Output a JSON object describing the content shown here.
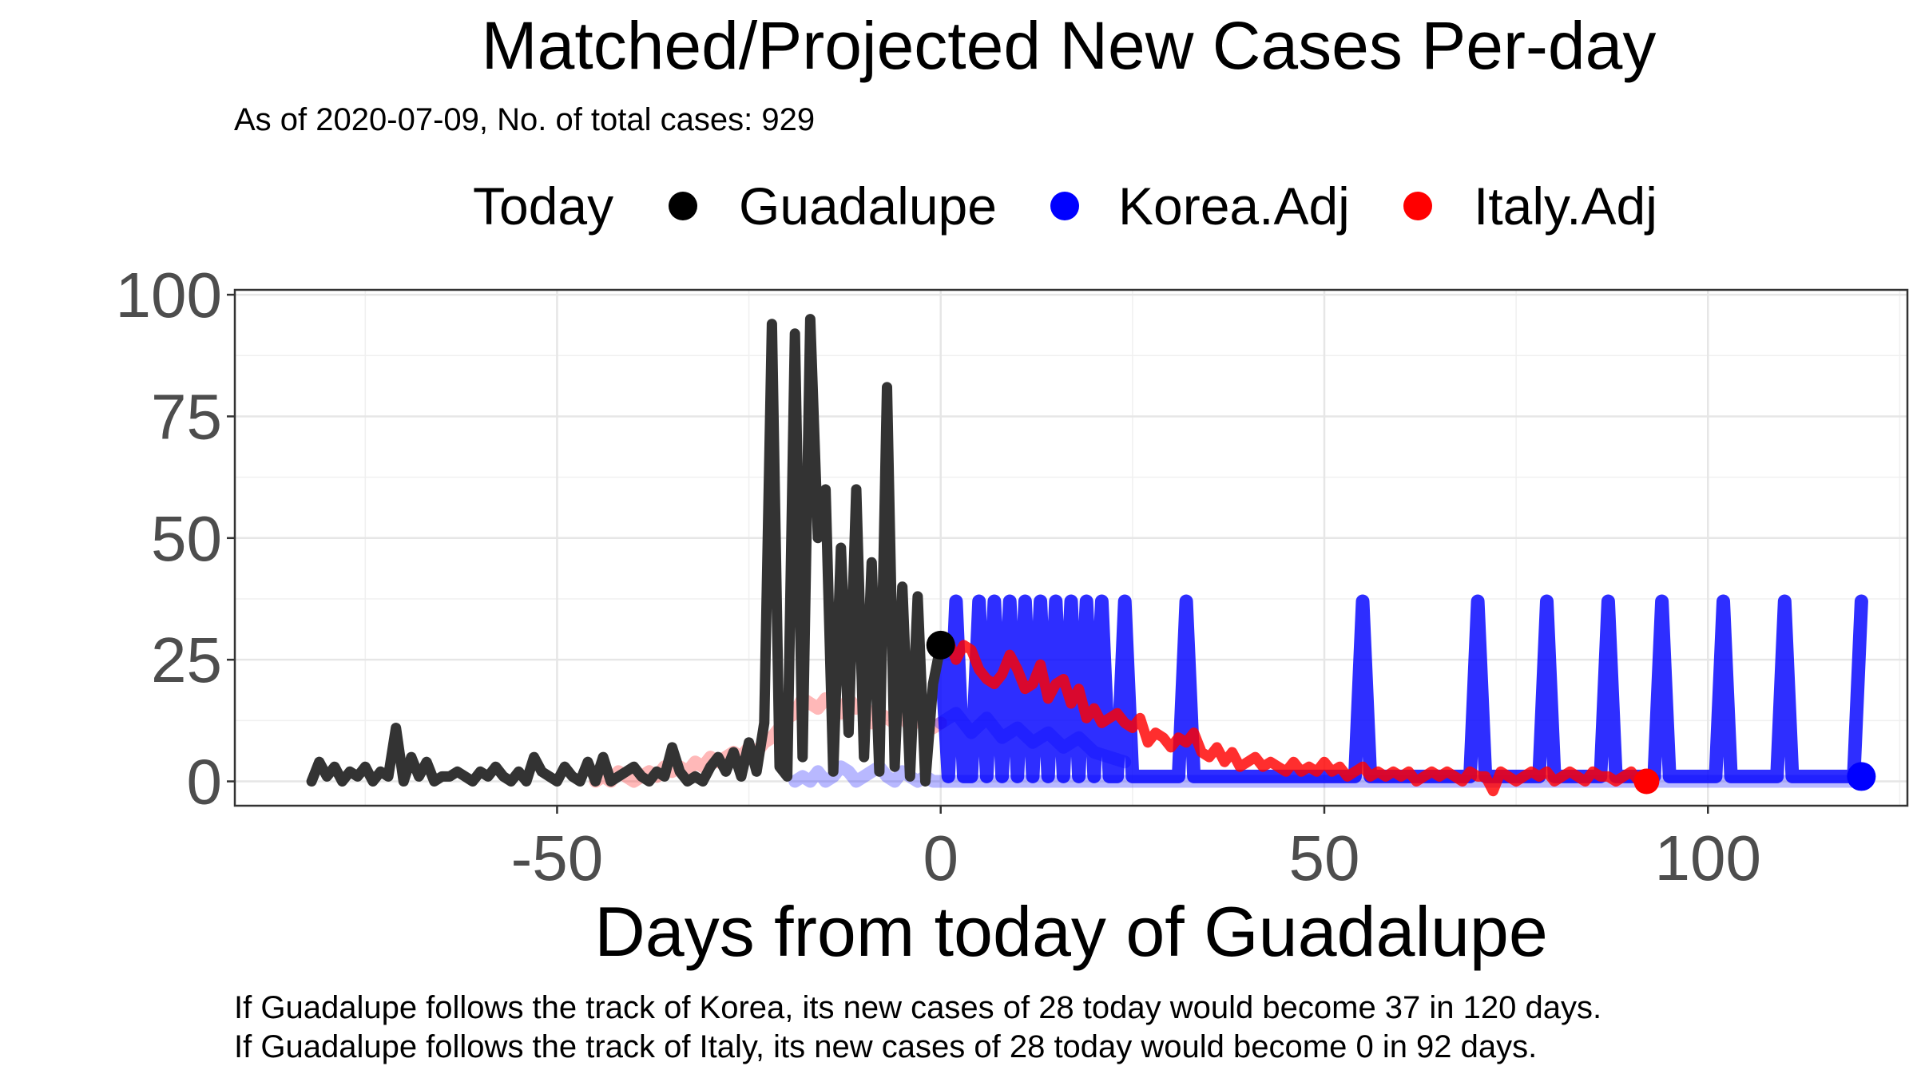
{
  "chart_data": {
    "type": "line",
    "title": "Matched/Projected New Cases Per-day",
    "subtitle": "As of 2020-07-09, No. of total cases: 929",
    "xlabel": "Days from today of Guadalupe",
    "ylabel": "",
    "xlim": [
      -92,
      126
    ],
    "ylim": [
      -5,
      101
    ],
    "x_ticks": [
      -50,
      0,
      50,
      100
    ],
    "y_ticks": [
      0,
      25,
      50,
      75,
      100
    ],
    "grid": true,
    "legend": {
      "position": "top",
      "title": "Today",
      "entries": [
        {
          "label": "Guadalupe",
          "color": "#000000"
        },
        {
          "label": "Korea.Adj",
          "color": "#0000FF"
        },
        {
          "label": "Italy.Adj",
          "color": "#FF0000"
        }
      ]
    },
    "today_point": {
      "x": 0,
      "y": 28
    },
    "series": [
      {
        "name": "Guadalupe",
        "color": "#333333",
        "x": [
          -82,
          -81,
          -80,
          -79,
          -78,
          -77,
          -76,
          -75,
          -74,
          -73,
          -72,
          -71,
          -70,
          -69,
          -68,
          -67,
          -66,
          -65,
          -64,
          -63,
          -62,
          -61,
          -60,
          -59,
          -58,
          -57,
          -56,
          -55,
          -54,
          -53,
          -52,
          -51,
          -50,
          -49,
          -48,
          -47,
          -46,
          -45,
          -44,
          -43,
          -42,
          -41,
          -40,
          -39,
          -38,
          -37,
          -36,
          -35,
          -34,
          -33,
          -32,
          -31,
          -30,
          -29,
          -28,
          -27,
          -26,
          -25,
          -24,
          -23,
          -22,
          -21,
          -20,
          -19,
          -18,
          -17,
          -16,
          -15,
          -14,
          -13,
          -12,
          -11,
          -10,
          -9,
          -8,
          -7,
          -6,
          -5,
          -4,
          -3,
          -2,
          -1,
          0
        ],
        "values": [
          0,
          4,
          1,
          3,
          0,
          2,
          1,
          3,
          0,
          2,
          1,
          11,
          0,
          5,
          1,
          4,
          0,
          1,
          1,
          2,
          1,
          0,
          2,
          1,
          3,
          1,
          0,
          2,
          0,
          5,
          2,
          1,
          0,
          3,
          1,
          0,
          4,
          0,
          5,
          0,
          1,
          2,
          3,
          1,
          0,
          2,
          1,
          7,
          2,
          0,
          1,
          0,
          3,
          5,
          2,
          6,
          1,
          8,
          2,
          12,
          94,
          3,
          1,
          92,
          5,
          95,
          50,
          60,
          2,
          48,
          10,
          60,
          5,
          45,
          2,
          81,
          3,
          40,
          1,
          38,
          0,
          20,
          28
        ]
      },
      {
        "name": "Korea.Adj",
        "color": "#0000FF",
        "x": [
          0,
          1,
          2,
          3,
          4,
          5,
          6,
          7,
          8,
          9,
          10,
          11,
          12,
          13,
          14,
          15,
          16,
          17,
          18,
          19,
          20,
          21,
          22,
          23,
          24,
          25,
          26,
          27,
          28,
          29,
          30,
          31,
          32,
          33,
          34,
          35,
          36,
          37,
          38,
          39,
          40,
          41,
          42,
          43,
          44,
          45,
          46,
          47,
          48,
          49,
          50,
          51,
          52,
          53,
          54,
          55,
          56,
          57,
          58,
          59,
          60,
          61,
          62,
          63,
          64,
          65,
          66,
          67,
          68,
          69,
          70,
          71,
          72,
          73,
          74,
          75,
          76,
          77,
          78,
          79,
          80,
          81,
          82,
          83,
          84,
          85,
          86,
          87,
          88,
          89,
          90,
          91,
          92,
          93,
          94,
          95,
          96,
          97,
          98,
          99,
          100,
          101,
          102,
          103,
          104,
          105,
          106,
          107,
          108,
          109,
          110,
          111,
          112,
          113,
          114,
          115,
          116,
          117,
          118,
          119,
          120
        ],
        "values": [
          28,
          1,
          37,
          1,
          1,
          37,
          1,
          37,
          1,
          37,
          1,
          37,
          1,
          37,
          1,
          37,
          1,
          37,
          1,
          37,
          1,
          37,
          1,
          1,
          37,
          1,
          1,
          1,
          1,
          1,
          1,
          1,
          37,
          1,
          1,
          1,
          1,
          1,
          1,
          1,
          1,
          1,
          1,
          1,
          1,
          1,
          1,
          1,
          1,
          1,
          1,
          1,
          1,
          1,
          1,
          37,
          1,
          1,
          1,
          1,
          1,
          1,
          1,
          1,
          1,
          1,
          1,
          1,
          1,
          1,
          37,
          1,
          1,
          1,
          1,
          1,
          1,
          1,
          1,
          37,
          1,
          1,
          1,
          1,
          1,
          1,
          1,
          37,
          1,
          1,
          1,
          1,
          1,
          1,
          37,
          1,
          1,
          1,
          1,
          1,
          1,
          1,
          37,
          1,
          1,
          1,
          1,
          1,
          1,
          1,
          37,
          1,
          1,
          1,
          1,
          1,
          1,
          1,
          1,
          1,
          37
        ]
      },
      {
        "name": "Italy.Adj",
        "color": "#FF0000",
        "x": [
          0,
          1,
          2,
          3,
          4,
          5,
          6,
          7,
          8,
          9,
          10,
          11,
          12,
          13,
          14,
          15,
          16,
          17,
          18,
          19,
          20,
          21,
          22,
          23,
          24,
          25,
          26,
          27,
          28,
          29,
          30,
          31,
          32,
          33,
          34,
          35,
          36,
          37,
          38,
          39,
          40,
          41,
          42,
          43,
          44,
          45,
          46,
          47,
          48,
          49,
          50,
          51,
          52,
          53,
          54,
          55,
          56,
          57,
          58,
          59,
          60,
          61,
          62,
          63,
          64,
          65,
          66,
          67,
          68,
          69,
          70,
          71,
          72,
          73,
          74,
          75,
          76,
          77,
          78,
          79,
          80,
          81,
          82,
          83,
          84,
          85,
          86,
          87,
          88,
          89,
          90,
          91,
          92
        ],
        "values": [
          28,
          29,
          25,
          28,
          27,
          23,
          21,
          20,
          22,
          26,
          23,
          19,
          20,
          24,
          17,
          20,
          21,
          16,
          19,
          13,
          15,
          12,
          13,
          14,
          12,
          11,
          13,
          8,
          10,
          9,
          7,
          9,
          8,
          10,
          6,
          5,
          7,
          4,
          6,
          3,
          4,
          5,
          3,
          4,
          3,
          2,
          4,
          2,
          3,
          2,
          4,
          2,
          3,
          1,
          2,
          3,
          1,
          2,
          1,
          2,
          1,
          2,
          0,
          1,
          2,
          1,
          2,
          1,
          0,
          2,
          1,
          1,
          -2,
          2,
          1,
          0,
          1,
          2,
          1,
          2,
          0,
          1,
          2,
          1,
          0,
          2,
          1,
          1,
          0,
          1,
          2,
          0,
          0
        ]
      },
      {
        "name": "Korea.Adj matched",
        "color": "#0000FF",
        "faded": true,
        "x": [
          -19,
          -18,
          -17,
          -16,
          -15,
          -14,
          -13,
          -12,
          -11,
          -10,
          -9,
          -8,
          -7,
          -6,
          -5,
          -4,
          -3,
          -2,
          -1,
          0,
          5,
          10,
          15,
          20,
          25,
          30,
          35,
          40,
          45,
          50,
          55,
          60,
          65,
          70,
          75,
          80,
          85,
          90,
          95,
          100,
          105,
          110,
          115,
          120
        ],
        "values": [
          0,
          1,
          0,
          2,
          0,
          1,
          3,
          2,
          0,
          1,
          2,
          3,
          1,
          0,
          2,
          1,
          0,
          1,
          0,
          0,
          0,
          0,
          0,
          0,
          0,
          0,
          0,
          0,
          0,
          0,
          0,
          0,
          0,
          0,
          0,
          0,
          0,
          0,
          0,
          0,
          0,
          0,
          0,
          0
        ]
      },
      {
        "name": "Italy.Adj matched",
        "color": "#FF0000",
        "faded": true,
        "x": [
          -45,
          -44,
          -43,
          -42,
          -41,
          -40,
          -39,
          -38,
          -37,
          -36,
          -35,
          -34,
          -33,
          -32,
          -31,
          -30,
          -29,
          -28,
          -27,
          -26,
          -25,
          -24,
          -23,
          -22,
          -21,
          -20,
          -19,
          -18,
          -17,
          -16,
          -15,
          -14,
          -13,
          -12,
          -11,
          -10,
          -9,
          -8,
          -7,
          -6,
          -5,
          -4,
          -3,
          -2,
          -1,
          0
        ],
        "values": [
          0,
          1,
          0,
          2,
          1,
          0,
          1,
          2,
          1,
          3,
          2,
          3,
          2,
          4,
          3,
          5,
          4,
          5,
          6,
          5,
          7,
          6,
          8,
          9,
          11,
          13,
          14,
          17,
          16,
          15,
          17,
          16,
          14,
          17,
          15,
          16,
          12,
          14,
          13,
          12,
          14,
          11,
          13,
          12,
          11,
          12
        ]
      },
      {
        "name": "Korea.Adj shadow",
        "color": "#0000FF",
        "faded": true,
        "x": [
          0,
          2,
          4,
          6,
          8,
          10,
          12,
          14,
          16,
          18,
          20,
          22,
          24
        ],
        "values": [
          12,
          14,
          10,
          13,
          9,
          11,
          8,
          10,
          7,
          9,
          6,
          5,
          4
        ]
      }
    ]
  },
  "caption": {
    "line1": "If Guadalupe follows the track of Korea, its new cases of 28 today would become 37 in 120 days.",
    "line2": "If Guadalupe follows the track of Italy, its new cases of 28 today would become 0 in 92 days."
  }
}
